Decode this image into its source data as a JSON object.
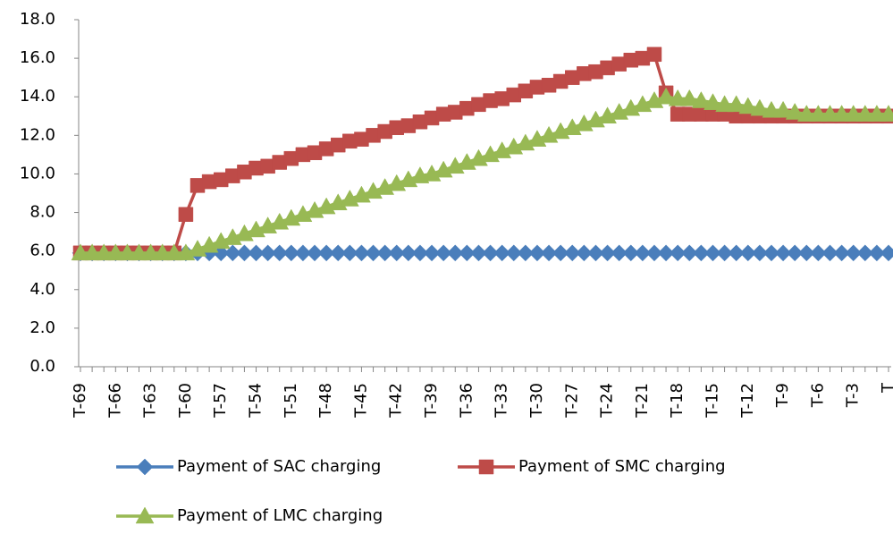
{
  "chart_data": {
    "type": "line",
    "categories": [
      "T-69",
      null,
      null,
      "T-66",
      null,
      null,
      "T-63",
      null,
      null,
      "T-60",
      null,
      null,
      "T-57",
      null,
      null,
      "T-54",
      null,
      null,
      "T-51",
      null,
      null,
      "T-48",
      null,
      null,
      "T-45",
      null,
      null,
      "T-42",
      null,
      null,
      "T-39",
      null,
      null,
      "T-36",
      null,
      null,
      "T-33",
      null,
      null,
      "T-30",
      null,
      null,
      "T-27",
      null,
      null,
      "T-24",
      null,
      null,
      "T-21",
      null,
      null,
      "T-18",
      null,
      null,
      "T-15",
      null,
      null,
      "T-12",
      null,
      null,
      "T-9",
      null,
      null,
      "T-6",
      null,
      null,
      "T-3",
      null,
      null,
      "T"
    ],
    "series": [
      {
        "name": "Payment of SAC charging",
        "color": "#4a7ebb",
        "marker": "diamond",
        "values": [
          5.9,
          5.9,
          5.9,
          5.9,
          5.9,
          5.9,
          5.9,
          5.9,
          5.9,
          5.9,
          5.9,
          5.9,
          5.9,
          5.9,
          5.9,
          5.9,
          5.9,
          5.9,
          5.9,
          5.9,
          5.9,
          5.9,
          5.9,
          5.9,
          5.9,
          5.9,
          5.9,
          5.9,
          5.9,
          5.9,
          5.9,
          5.9,
          5.9,
          5.9,
          5.9,
          5.9,
          5.9,
          5.9,
          5.9,
          5.9,
          5.9,
          5.9,
          5.9,
          5.9,
          5.9,
          5.9,
          5.9,
          5.9,
          5.9,
          5.9,
          5.9,
          5.9,
          5.9,
          5.9,
          5.9,
          5.9,
          5.9,
          5.9,
          5.9,
          5.9,
          5.9,
          5.9,
          5.9,
          5.9,
          5.9,
          5.9,
          5.9,
          5.9,
          5.9,
          5.9
        ]
      },
      {
        "name": "Payment of SMC charging",
        "color": "#be4b48",
        "marker": "square",
        "values": [
          5.9,
          5.9,
          5.9,
          5.9,
          5.9,
          5.9,
          5.9,
          5.9,
          5.9,
          7.9,
          9.4,
          9.6,
          9.7,
          9.9,
          10.1,
          10.3,
          10.4,
          10.6,
          10.8,
          11.0,
          11.1,
          11.3,
          11.5,
          11.7,
          11.8,
          12.0,
          12.2,
          12.4,
          12.5,
          12.7,
          12.9,
          13.1,
          13.2,
          13.4,
          13.6,
          13.8,
          13.9,
          14.1,
          14.3,
          14.5,
          14.6,
          14.8,
          15.0,
          15.2,
          15.3,
          15.5,
          15.7,
          15.9,
          16.0,
          16.2,
          14.2,
          13.1,
          13.1,
          13.1,
          13.1,
          13.1,
          13.0,
          13.0,
          13.0,
          13.0,
          13.0,
          13.0,
          13.0,
          13.0,
          13.0,
          13.0,
          13.0,
          13.0,
          13.0,
          13.0
        ]
      },
      {
        "name": "Payment of LMC charging",
        "color": "#98b954",
        "marker": "triangle",
        "values": [
          5.9,
          5.9,
          5.9,
          5.9,
          5.9,
          5.9,
          5.9,
          5.9,
          5.9,
          5.9,
          6.1,
          6.3,
          6.5,
          6.7,
          6.9,
          7.1,
          7.3,
          7.5,
          7.7,
          7.9,
          8.1,
          8.3,
          8.5,
          8.7,
          8.9,
          9.1,
          9.3,
          9.5,
          9.7,
          9.9,
          10.0,
          10.2,
          10.4,
          10.6,
          10.8,
          11.0,
          11.2,
          11.4,
          11.6,
          11.8,
          12.0,
          12.2,
          12.4,
          12.6,
          12.8,
          13.0,
          13.2,
          13.4,
          13.6,
          13.8,
          14.0,
          13.9,
          13.9,
          13.8,
          13.7,
          13.6,
          13.6,
          13.5,
          13.4,
          13.3,
          13.3,
          13.2,
          13.1,
          13.1,
          13.1,
          13.1,
          13.1,
          13.1,
          13.1,
          13.1
        ]
      }
    ],
    "ylim": [
      0,
      18
    ],
    "yticks": [
      {
        "value": 0,
        "label": "0.0"
      },
      {
        "value": 2,
        "label": "2.0"
      },
      {
        "value": 4,
        "label": "4.0"
      },
      {
        "value": 6,
        "label": "6.0"
      },
      {
        "value": 8,
        "label": "8.0"
      },
      {
        "value": 10,
        "label": "10.0"
      },
      {
        "value": 12,
        "label": "12.0"
      },
      {
        "value": 14,
        "label": "14.0"
      },
      {
        "value": 16,
        "label": "16.0"
      },
      {
        "value": 18,
        "label": "18.0"
      }
    ],
    "grid": false,
    "legend": "bottom"
  }
}
